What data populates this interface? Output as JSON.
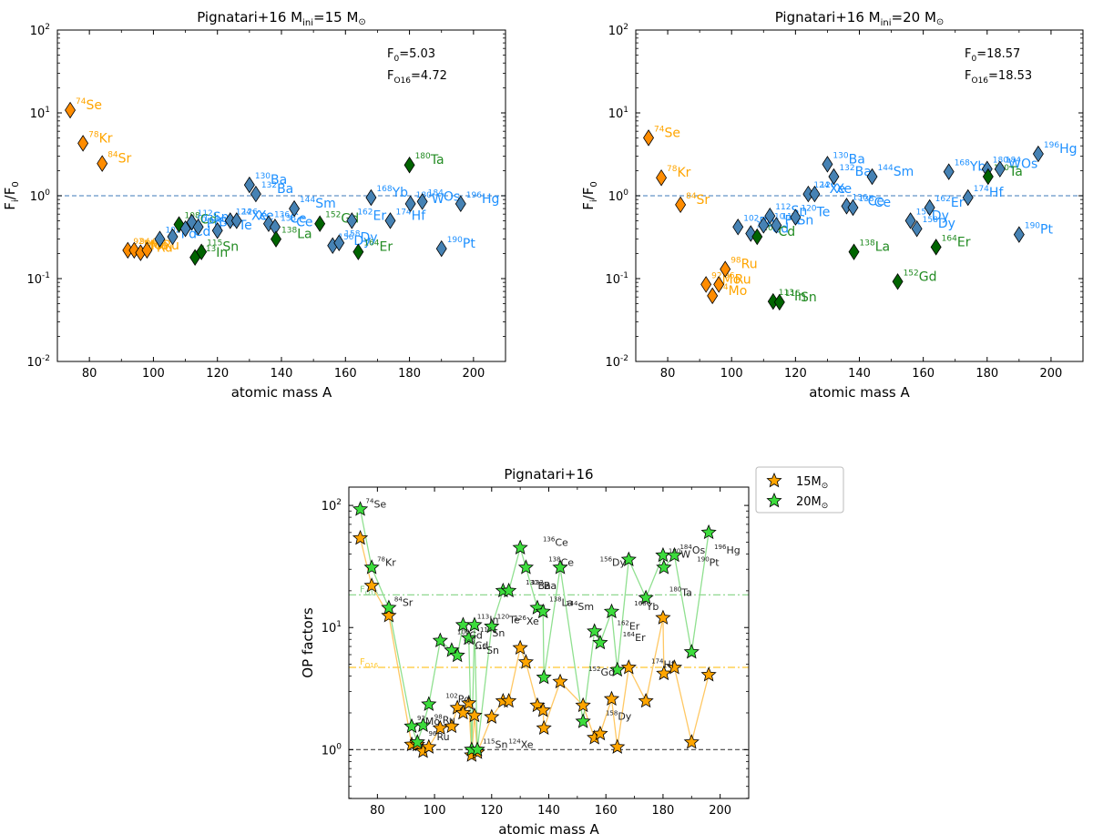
{
  "colors": {
    "p_only": "#FFA500",
    "p_only_edge": "#FF8C00",
    "mixed": "#228B22",
    "mixed_dark": "#006400",
    "s_only": "#1E90FF",
    "s_only_marker": "#4682B4",
    "star15": "#FFA500",
    "star20": "#3CDC3C",
    "line15": "#FFC864",
    "line20": "#90E090",
    "ref": "#6495C8",
    "f016_15": "#FFC832",
    "f016_20": "#82D282"
  },
  "chart_data": [
    {
      "type": "scatter",
      "title": "Pignatari+16 M",
      "title_sub": "ini",
      "title_value": "=15 M",
      "title_sun": "⊙",
      "xlabel": "atomic mass A",
      "ylabel": "F",
      "ylabel_sub": "i",
      "ylabel_den": "/F",
      "ylabel_den_sub": "0",
      "xlim": [
        70,
        210
      ],
      "ylim_log10": [
        -2,
        2
      ],
      "xticks": [
        "80",
        "100",
        "120",
        "140",
        "160",
        "180",
        "200"
      ],
      "xtick_values": [
        80,
        100,
        120,
        140,
        160,
        180,
        200
      ],
      "yticks": [
        {
          "base": "10",
          "exp": "-2",
          "v": -2
        },
        {
          "base": "10",
          "exp": "-1",
          "v": -1
        },
        {
          "base": "10",
          "exp": "0",
          "v": 0
        },
        {
          "base": "10",
          "exp": "1",
          "v": 1
        },
        {
          "base": "10",
          "exp": "2",
          "v": 2
        }
      ],
      "reference_y": 1.0,
      "annotations": [
        {
          "label": "F",
          "sub": "0",
          "rest": "=5.03"
        },
        {
          "label": "F",
          "sub": "O16",
          "rest": "=4.72"
        }
      ],
      "points": [
        {
          "A": 74,
          "y": 10.8,
          "cls": "p",
          "mass": "74",
          "el": "Se"
        },
        {
          "A": 78,
          "y": 4.3,
          "cls": "p",
          "mass": "78",
          "el": "Kr"
        },
        {
          "A": 84,
          "y": 2.45,
          "cls": "p",
          "mass": "84",
          "el": "Sr"
        },
        {
          "A": 92,
          "y": 0.22,
          "cls": "p",
          "mass": "92",
          "el": "Mo"
        },
        {
          "A": 94,
          "y": 0.22,
          "cls": "p",
          "mass": "94",
          "el": "Mo"
        },
        {
          "A": 96,
          "y": 0.205,
          "cls": "p",
          "mass": "96",
          "el": "Ru"
        },
        {
          "A": 98,
          "y": 0.22,
          "cls": "p",
          "mass": "98",
          "el": "Ru"
        },
        {
          "A": 102,
          "y": 0.3,
          "cls": "s",
          "mass": "102",
          "el": "Pd"
        },
        {
          "A": 106,
          "y": 0.32,
          "cls": "s",
          "mass": "106",
          "el": "Cd"
        },
        {
          "A": 108,
          "y": 0.45,
          "cls": "m",
          "mass": "108",
          "el": "Cd"
        },
        {
          "A": 110,
          "y": 0.4,
          "cls": "s",
          "mass": "110",
          "el": "Pd"
        },
        {
          "A": 112,
          "y": 0.48,
          "cls": "s",
          "mass": "112",
          "el": "Sn"
        },
        {
          "A": 113,
          "y": 0.18,
          "cls": "m",
          "mass": "113",
          "el": "In"
        },
        {
          "A": 114,
          "y": 0.42,
          "cls": "s",
          "mass": "114",
          "el": "Sn"
        },
        {
          "A": 115,
          "y": 0.21,
          "cls": "m",
          "mass": "115",
          "el": "Sn"
        },
        {
          "A": 120,
          "y": 0.38,
          "cls": "s",
          "mass": "120",
          "el": "Te"
        },
        {
          "A": 124,
          "y": 0.5,
          "cls": "s",
          "mass": "124",
          "el": "Xe"
        },
        {
          "A": 126,
          "y": 0.5,
          "cls": "s",
          "mass": "126",
          "el": "Xe"
        },
        {
          "A": 130,
          "y": 1.35,
          "cls": "s",
          "mass": "130",
          "el": "Ba"
        },
        {
          "A": 132,
          "y": 1.05,
          "cls": "s",
          "mass": "132",
          "el": "Ba"
        },
        {
          "A": 136,
          "y": 0.46,
          "cls": "s",
          "mass": "136",
          "el": "Ce"
        },
        {
          "A": 138,
          "y": 0.42,
          "cls": "s",
          "mass": "138",
          "el": "Ce"
        },
        {
          "A": 138.3,
          "y": 0.3,
          "cls": "m",
          "mass": "138",
          "el": "La"
        },
        {
          "A": 144,
          "y": 0.7,
          "cls": "s",
          "mass": "144",
          "el": "Sm"
        },
        {
          "A": 152,
          "y": 0.46,
          "cls": "m",
          "mass": "152",
          "el": "Gd"
        },
        {
          "A": 156,
          "y": 0.25,
          "cls": "s",
          "mass": "156",
          "el": "Dy"
        },
        {
          "A": 158,
          "y": 0.27,
          "cls": "s",
          "mass": "158",
          "el": "Dy"
        },
        {
          "A": 162,
          "y": 0.5,
          "cls": "s",
          "mass": "162",
          "el": "Er"
        },
        {
          "A": 164,
          "y": 0.21,
          "cls": "m",
          "mass": "164",
          "el": "Er"
        },
        {
          "A": 168,
          "y": 0.95,
          "cls": "s",
          "mass": "168",
          "el": "Yb"
        },
        {
          "A": 174,
          "y": 0.5,
          "cls": "s",
          "mass": "174",
          "el": "Hf"
        },
        {
          "A": 180,
          "y": 2.35,
          "cls": "m",
          "mass": "180",
          "el": "Ta"
        },
        {
          "A": 180.3,
          "y": 0.8,
          "cls": "s",
          "mass": "180",
          "el": "W"
        },
        {
          "A": 184,
          "y": 0.85,
          "cls": "s",
          "mass": "184",
          "el": "Os"
        },
        {
          "A": 190,
          "y": 0.23,
          "cls": "s",
          "mass": "190",
          "el": "Pt"
        },
        {
          "A": 196,
          "y": 0.8,
          "cls": "s",
          "mass": "196",
          "el": "Hg"
        }
      ]
    },
    {
      "type": "scatter",
      "title": "Pignatari+16 M",
      "title_sub": "ini",
      "title_value": "=20 M",
      "title_sun": "⊙",
      "xlabel": "atomic mass A",
      "ylabel": "F",
      "ylabel_sub": "i",
      "ylabel_den": "/F",
      "ylabel_den_sub": "0",
      "xlim": [
        70,
        210
      ],
      "ylim_log10": [
        -2,
        2
      ],
      "xticks": [
        "80",
        "100",
        "120",
        "140",
        "160",
        "180",
        "200"
      ],
      "xtick_values": [
        80,
        100,
        120,
        140,
        160,
        180,
        200
      ],
      "yticks": [
        {
          "base": "10",
          "exp": "-2",
          "v": -2
        },
        {
          "base": "10",
          "exp": "-1",
          "v": -1
        },
        {
          "base": "10",
          "exp": "0",
          "v": 0
        },
        {
          "base": "10",
          "exp": "1",
          "v": 1
        },
        {
          "base": "10",
          "exp": "2",
          "v": 2
        }
      ],
      "reference_y": 1.0,
      "annotations": [
        {
          "label": "F",
          "sub": "0",
          "rest": "=18.57"
        },
        {
          "label": "F",
          "sub": "O16",
          "rest": "=18.53"
        }
      ],
      "points": [
        {
          "A": 74,
          "y": 5.0,
          "cls": "p",
          "mass": "74",
          "el": "Se"
        },
        {
          "A": 78,
          "y": 1.65,
          "cls": "p",
          "mass": "78",
          "el": "Kr"
        },
        {
          "A": 84,
          "y": 0.78,
          "cls": "p",
          "mass": "84",
          "el": "Sr"
        },
        {
          "A": 92,
          "y": 0.085,
          "cls": "p",
          "mass": "92",
          "el": "Mo"
        },
        {
          "A": 94,
          "y": 0.062,
          "cls": "p",
          "mass": "94",
          "el": "Mo"
        },
        {
          "A": 96,
          "y": 0.085,
          "cls": "p",
          "mass": "96",
          "el": "Ru"
        },
        {
          "A": 98,
          "y": 0.13,
          "cls": "p",
          "mass": "98",
          "el": "Ru"
        },
        {
          "A": 102,
          "y": 0.42,
          "cls": "s",
          "mass": "102",
          "el": "Pd"
        },
        {
          "A": 106,
          "y": 0.35,
          "cls": "s",
          "mass": "106",
          "el": "Cd"
        },
        {
          "A": 108,
          "y": 0.32,
          "cls": "m",
          "mass": "108",
          "el": "Cd"
        },
        {
          "A": 110,
          "y": 0.44,
          "cls": "s",
          "mass": "110",
          "el": "Pd"
        },
        {
          "A": 112,
          "y": 0.57,
          "cls": "s",
          "mass": "112",
          "el": "Sn"
        },
        {
          "A": 113,
          "y": 0.053,
          "cls": "m",
          "mass": "113",
          "el": "In"
        },
        {
          "A": 114,
          "y": 0.44,
          "cls": "s",
          "mass": "114",
          "el": "Sn"
        },
        {
          "A": 115,
          "y": 0.052,
          "cls": "m",
          "mass": "115",
          "el": "Sn"
        },
        {
          "A": 120,
          "y": 0.55,
          "cls": "s",
          "mass": "120",
          "el": "Te"
        },
        {
          "A": 124,
          "y": 1.05,
          "cls": "s",
          "mass": "124",
          "el": "Xe"
        },
        {
          "A": 126,
          "y": 1.05,
          "cls": "s",
          "mass": "126",
          "el": "Xe"
        },
        {
          "A": 130,
          "y": 2.4,
          "cls": "s",
          "mass": "130",
          "el": "Ba"
        },
        {
          "A": 132,
          "y": 1.7,
          "cls": "s",
          "mass": "132",
          "el": "Ba"
        },
        {
          "A": 136,
          "y": 0.75,
          "cls": "s",
          "mass": "136",
          "el": "Ce"
        },
        {
          "A": 138,
          "y": 0.72,
          "cls": "s",
          "mass": "138",
          "el": "Ce"
        },
        {
          "A": 138.3,
          "y": 0.21,
          "cls": "m",
          "mass": "138",
          "el": "La"
        },
        {
          "A": 144,
          "y": 1.7,
          "cls": "s",
          "mass": "144",
          "el": "Sm"
        },
        {
          "A": 152,
          "y": 0.092,
          "cls": "m",
          "mass": "152",
          "el": "Gd"
        },
        {
          "A": 156,
          "y": 0.5,
          "cls": "s",
          "mass": "156",
          "el": "Dy"
        },
        {
          "A": 158,
          "y": 0.4,
          "cls": "s",
          "mass": "158",
          "el": "Dy"
        },
        {
          "A": 162,
          "y": 0.72,
          "cls": "s",
          "mass": "162",
          "el": "Er"
        },
        {
          "A": 164,
          "y": 0.24,
          "cls": "m",
          "mass": "164",
          "el": "Er"
        },
        {
          "A": 168,
          "y": 1.95,
          "cls": "s",
          "mass": "168",
          "el": "Yb"
        },
        {
          "A": 174,
          "y": 0.95,
          "cls": "s",
          "mass": "174",
          "el": "Hf"
        },
        {
          "A": 180,
          "y": 2.1,
          "cls": "s",
          "mass": "180",
          "el": "W"
        },
        {
          "A": 180.3,
          "y": 1.7,
          "cls": "m",
          "mass": "180",
          "el": "Ta"
        },
        {
          "A": 184,
          "y": 2.1,
          "cls": "s",
          "mass": "184",
          "el": "Os"
        },
        {
          "A": 190,
          "y": 0.34,
          "cls": "s",
          "mass": "190",
          "el": "Pt"
        },
        {
          "A": 196,
          "y": 3.2,
          "cls": "s",
          "mass": "196",
          "el": "Hg"
        }
      ]
    },
    {
      "type": "line",
      "title": "Pignatari+16",
      "xlabel": "atomic mass A",
      "ylabel": "OP factors",
      "xlim": [
        70,
        210
      ],
      "ylim_log10": [
        -0.4,
        2.15
      ],
      "xticks": [
        "80",
        "100",
        "120",
        "140",
        "160",
        "180",
        "200"
      ],
      "xtick_values": [
        80,
        100,
        120,
        140,
        160,
        180,
        200
      ],
      "yticks": [
        {
          "base": "10",
          "exp": "0",
          "v": 0
        },
        {
          "base": "10",
          "exp": "1",
          "v": 1
        },
        {
          "base": "10",
          "exp": "2",
          "v": 2
        }
      ],
      "reference_y": 1.0,
      "f016_lines": [
        {
          "label": "F",
          "sub": "O16",
          "y": 18.53,
          "series": "20"
        },
        {
          "label": "F",
          "sub": "O16",
          "y": 4.72,
          "series": "15"
        }
      ],
      "legend": [
        {
          "label": "15M",
          "sub": "⊙"
        },
        {
          "label": "20M",
          "sub": "⊙"
        }
      ],
      "series": [
        {
          "name": "15M⊙",
          "x": [
            74,
            78,
            84,
            92,
            94,
            96,
            98,
            102,
            106,
            108,
            110,
            112,
            113,
            114,
            115,
            120,
            124,
            126,
            130,
            132,
            136,
            138,
            138.3,
            144,
            152,
            156,
            158,
            162,
            164,
            168,
            174,
            180,
            180.3,
            184,
            190,
            196
          ],
          "y": [
            54,
            22,
            12.5,
            1.1,
            1.1,
            0.97,
            1.05,
            1.5,
            1.55,
            2.2,
            2.0,
            2.4,
            0.9,
            1.9,
            0.95,
            1.85,
            2.5,
            2.5,
            6.8,
            5.2,
            2.3,
            2.1,
            1.5,
            3.6,
            2.3,
            1.25,
            1.35,
            2.6,
            1.05,
            4.7,
            2.5,
            12.0,
            4.2,
            4.7,
            1.15,
            4.1
          ]
        },
        {
          "name": "20M⊙",
          "x": [
            74,
            78,
            84,
            92,
            94,
            96,
            98,
            102,
            106,
            108,
            110,
            112,
            113,
            114,
            115,
            120,
            124,
            126,
            130,
            132,
            136,
            138,
            138.3,
            144,
            152,
            156,
            158,
            162,
            164,
            168,
            174,
            180,
            180.3,
            184,
            190,
            196
          ],
          "y": [
            93,
            31,
            14.5,
            1.55,
            1.15,
            1.58,
            2.35,
            7.8,
            6.5,
            5.9,
            10.5,
            8.2,
            1.0,
            10.5,
            1.0,
            10.2,
            20,
            20,
            45,
            31,
            14.5,
            13.5,
            3.9,
            31,
            1.7,
            9.3,
            7.5,
            13.5,
            4.5,
            36,
            17.5,
            39,
            31,
            39,
            6.3,
            60
          ]
        }
      ],
      "labels20": [
        {
          "A": 74,
          "mass": "74",
          "el": "Se"
        },
        {
          "A": 78,
          "mass": "78",
          "el": "Kr"
        },
        {
          "A": 84,
          "mass": "84",
          "el": "Sr"
        },
        {
          "A": 92,
          "mass": "92",
          "el": "Mo"
        },
        {
          "A": 96,
          "mass": "96",
          "el": "Ru"
        },
        {
          "A": 98,
          "mass": "98",
          "el": "Ru"
        },
        {
          "A": 102,
          "mass": "102",
          "el": "Pd"
        },
        {
          "A": 106,
          "mass": "106",
          "el": "Cd"
        },
        {
          "A": 108,
          "mass": "108",
          "el": "Cd"
        },
        {
          "A": 112,
          "mass": "112",
          "el": "Sn"
        },
        {
          "A": 113,
          "mass": "113",
          "el": "In"
        },
        {
          "A": 114,
          "mass": "114",
          "el": "Sn"
        },
        {
          "A": 115,
          "mass": "115",
          "el": "Sn"
        },
        {
          "A": 120,
          "mass": "120",
          "el": "Te"
        },
        {
          "A": 124,
          "mass": "124",
          "el": "Xe"
        },
        {
          "A": 126,
          "mass": "126",
          "el": "Xe"
        },
        {
          "A": 130,
          "mass": "130",
          "el": "Ba"
        },
        {
          "A": 132,
          "mass": "132",
          "el": "Ba"
        },
        {
          "A": 136,
          "mass": "136",
          "el": "Ce"
        },
        {
          "A": 138,
          "mass": "138",
          "el": "Ce"
        },
        {
          "A": 138.3,
          "mass": "138",
          "el": "La"
        },
        {
          "A": 144,
          "mass": "144",
          "el": "Sm"
        },
        {
          "A": 152,
          "mass": "152",
          "el": "Gd"
        },
        {
          "A": 156,
          "mass": "156",
          "el": "Dy"
        },
        {
          "A": 158,
          "mass": "158",
          "el": "Dy"
        },
        {
          "A": 162,
          "mass": "162",
          "el": "Er"
        },
        {
          "A": 164,
          "mass": "164",
          "el": "Er"
        },
        {
          "A": 168,
          "mass": "168",
          "el": "Yb"
        },
        {
          "A": 174,
          "mass": "174",
          "el": "Hf"
        },
        {
          "A": 180,
          "mass": "180",
          "el": "W"
        },
        {
          "A": 180.3,
          "mass": "180",
          "el": "Ta"
        },
        {
          "A": 184,
          "mass": "184",
          "el": "Os"
        },
        {
          "A": 190,
          "mass": "190",
          "el": "Pt"
        },
        {
          "A": 196,
          "mass": "196",
          "el": "Hg"
        }
      ]
    }
  ]
}
